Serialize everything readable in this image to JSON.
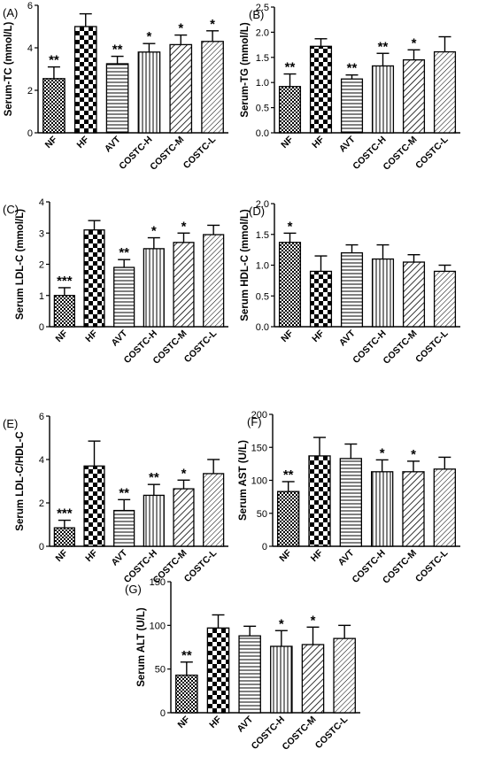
{
  "figure": {
    "categories": [
      "NF",
      "HF",
      "AVT",
      "COSTC-H",
      "COSTC-M",
      "COSTC-L"
    ]
  },
  "chart_data": [
    {
      "panel": "(A)",
      "type": "bar",
      "ylabel": "Serum-TC (mmol/L)",
      "categories": [
        "NF",
        "HF",
        "AVT",
        "COSTC-H",
        "COSTC-M",
        "COSTC-L"
      ],
      "values": [
        2.55,
        5.0,
        3.25,
        3.8,
        4.15,
        4.3
      ],
      "errors": [
        0.55,
        0.6,
        0.35,
        0.4,
        0.45,
        0.5
      ],
      "significance": [
        "**",
        "",
        "**",
        "*",
        "*",
        "*"
      ],
      "ylim": [
        0,
        6
      ],
      "yticks": [
        "0",
        "2",
        "4",
        "6"
      ]
    },
    {
      "panel": "(B)",
      "type": "bar",
      "ylabel": "Serum-TG (mmol/L)",
      "categories": [
        "NF",
        "HF",
        "AVT",
        "COSTC-H",
        "COSTC-M",
        "COSTC-L"
      ],
      "values": [
        0.92,
        1.72,
        1.07,
        1.33,
        1.45,
        1.61
      ],
      "errors": [
        0.25,
        0.15,
        0.08,
        0.25,
        0.2,
        0.3
      ],
      "significance": [
        "**",
        "",
        "**",
        "**",
        "*",
        ""
      ],
      "ylim": [
        0,
        2.5
      ],
      "yticks": [
        "0.0",
        "0.5",
        "1.0",
        "1.5",
        "2.0",
        "2.5"
      ]
    },
    {
      "panel": "(C)",
      "type": "bar",
      "ylabel": "Serum LDL-C (mmol/L)",
      "categories": [
        "NF",
        "HF",
        "AVT",
        "COSTC-H",
        "COSTC-M",
        "COSTC-L"
      ],
      "values": [
        1.0,
        3.1,
        1.9,
        2.5,
        2.7,
        2.95
      ],
      "errors": [
        0.25,
        0.3,
        0.25,
        0.35,
        0.3,
        0.3
      ],
      "significance": [
        "***",
        "",
        "**",
        "*",
        "*",
        ""
      ],
      "ylim": [
        0,
        4
      ],
      "yticks": [
        "0",
        "1",
        "2",
        "3",
        "4"
      ]
    },
    {
      "panel": "(D)",
      "type": "bar",
      "ylabel": "Serum HDL-C (mmol/L)",
      "categories": [
        "NF",
        "HF",
        "AVT",
        "COSTC-H",
        "COSTC-M",
        "COSTC-L"
      ],
      "values": [
        1.37,
        0.9,
        1.2,
        1.1,
        1.05,
        0.9
      ],
      "errors": [
        0.15,
        0.25,
        0.13,
        0.23,
        0.12,
        0.1
      ],
      "significance": [
        "*",
        "",
        "",
        "",
        "",
        ""
      ],
      "ylim": [
        0,
        2.0
      ],
      "yticks": [
        "0.0",
        "0.5",
        "1.0",
        "1.5",
        "2.0"
      ]
    },
    {
      "panel": "(E)",
      "type": "bar",
      "ylabel": "Serum LDL-C/HDL-C",
      "categories": [
        "NF",
        "HF",
        "AVT",
        "COSTC-H",
        "COSTC-M",
        "COSTC-L"
      ],
      "values": [
        0.85,
        3.7,
        1.65,
        2.35,
        2.65,
        3.35
      ],
      "errors": [
        0.35,
        1.15,
        0.5,
        0.5,
        0.4,
        0.65
      ],
      "significance": [
        "***",
        "",
        "**",
        "**",
        "*",
        ""
      ],
      "ylim": [
        0,
        6
      ],
      "yticks": [
        "0",
        "2",
        "4",
        "6"
      ]
    },
    {
      "panel": "(F)",
      "type": "bar",
      "ylabel": "Serum AST (U/L)",
      "categories": [
        "NF",
        "HF",
        "AVT",
        "COSTC-H",
        "COSTC-M",
        "COSTC-L"
      ],
      "values": [
        83,
        137,
        133,
        113,
        113,
        117
      ],
      "errors": [
        15,
        28,
        22,
        18,
        16,
        18
      ],
      "significance": [
        "**",
        "",
        "",
        "*",
        "*",
        ""
      ],
      "ylim": [
        0,
        200
      ],
      "yticks": [
        "0",
        "50",
        "100",
        "150",
        "200"
      ]
    },
    {
      "panel": "(G)",
      "type": "bar",
      "ylabel": "Serum ALT (U/L)",
      "categories": [
        "NF",
        "HF",
        "AVT",
        "COSTC-H",
        "COSTC-M",
        "COSTC-L"
      ],
      "values": [
        43,
        97,
        88,
        76,
        78,
        85
      ],
      "errors": [
        15,
        15,
        11,
        18,
        20,
        15
      ],
      "significance": [
        "**",
        "",
        "",
        "*",
        "*",
        ""
      ],
      "ylim": [
        0,
        150
      ],
      "yticks": [
        "0",
        "50",
        "100",
        "150"
      ]
    }
  ]
}
